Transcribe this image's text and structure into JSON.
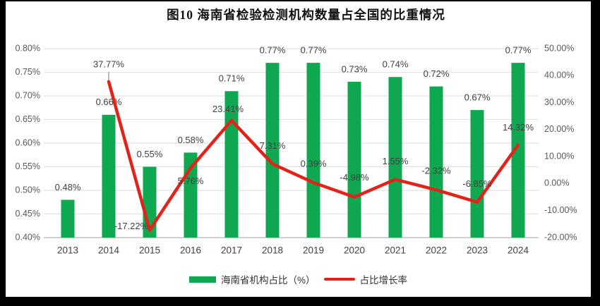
{
  "title": "图10  海南省检验检测机构数量占全国的比重情况",
  "colors": {
    "bar": "#0FA851",
    "line": "#E2231A",
    "grid": "#E2E2E2",
    "baseline": "#D0D0D0",
    "axis_text": "#595959",
    "label_text": "#404040",
    "leader": "#A6A6A6",
    "frame": "#000000"
  },
  "chart_data": {
    "type": "combo bar+line, dual axis",
    "title": "图10  海南省检验检测机构数量占全国的比重情况",
    "categories": [
      "2013",
      "2014",
      "2015",
      "2016",
      "2017",
      "2018",
      "2019",
      "2020",
      "2021",
      "2022",
      "2023",
      "2024"
    ],
    "series": [
      {
        "name": "海南省机构占比（%）",
        "type": "bar",
        "axis": "left",
        "values": [
          0.48,
          0.66,
          0.55,
          0.58,
          0.71,
          0.77,
          0.77,
          0.73,
          0.74,
          0.72,
          0.67,
          0.77
        ],
        "labels": [
          "0.48%",
          "0.66%",
          "0.55%",
          "0.58%",
          "0.71%",
          "0.77%",
          "0.77%",
          "0.73%",
          "0.74%",
          "0.72%",
          "0.67%",
          "0.77%"
        ]
      },
      {
        "name": "占比增长率",
        "type": "line",
        "axis": "right",
        "start_category_index": 1,
        "values": [
          37.77,
          -17.22,
          5.76,
          23.41,
          7.31,
          0.39,
          -4.98,
          1.55,
          -2.32,
          -6.85,
          14.32
        ],
        "labels": [
          "37.77%",
          "-17.22%",
          "5.76%",
          "23.41%",
          "7.31%",
          "0.39%",
          "-4.98%",
          "1.55%",
          "-2.32%",
          "-6.85%",
          "14.32%"
        ],
        "label_offsets": [
          [
            0,
            -24
          ],
          [
            -26,
            -5
          ],
          [
            0,
            19
          ],
          [
            -5,
            -15
          ],
          [
            0,
            -25
          ],
          [
            0,
            -26
          ],
          [
            0,
            -27
          ],
          [
            0,
            -25
          ],
          [
            0,
            -26
          ],
          [
            0,
            -25
          ],
          [
            0,
            -24
          ]
        ],
        "leader_index": 0
      }
    ],
    "left_axis": {
      "min": 0.4,
      "max": 0.8,
      "step": 0.05,
      "unit": "%",
      "ticks": [
        "0.80%",
        "0.75%",
        "0.70%",
        "0.65%",
        "0.60%",
        "0.55%",
        "0.50%",
        "0.45%",
        "0.40%"
      ]
    },
    "right_axis": {
      "min": -20,
      "max": 50,
      "step": 10,
      "unit": "%",
      "ticks": [
        "50.00%",
        "40.00%",
        "30.00%",
        "20.00%",
        "10.00%",
        "0.00%",
        "-10.00%",
        "-20.00%"
      ]
    },
    "grid": true,
    "legend_position": "bottom"
  }
}
